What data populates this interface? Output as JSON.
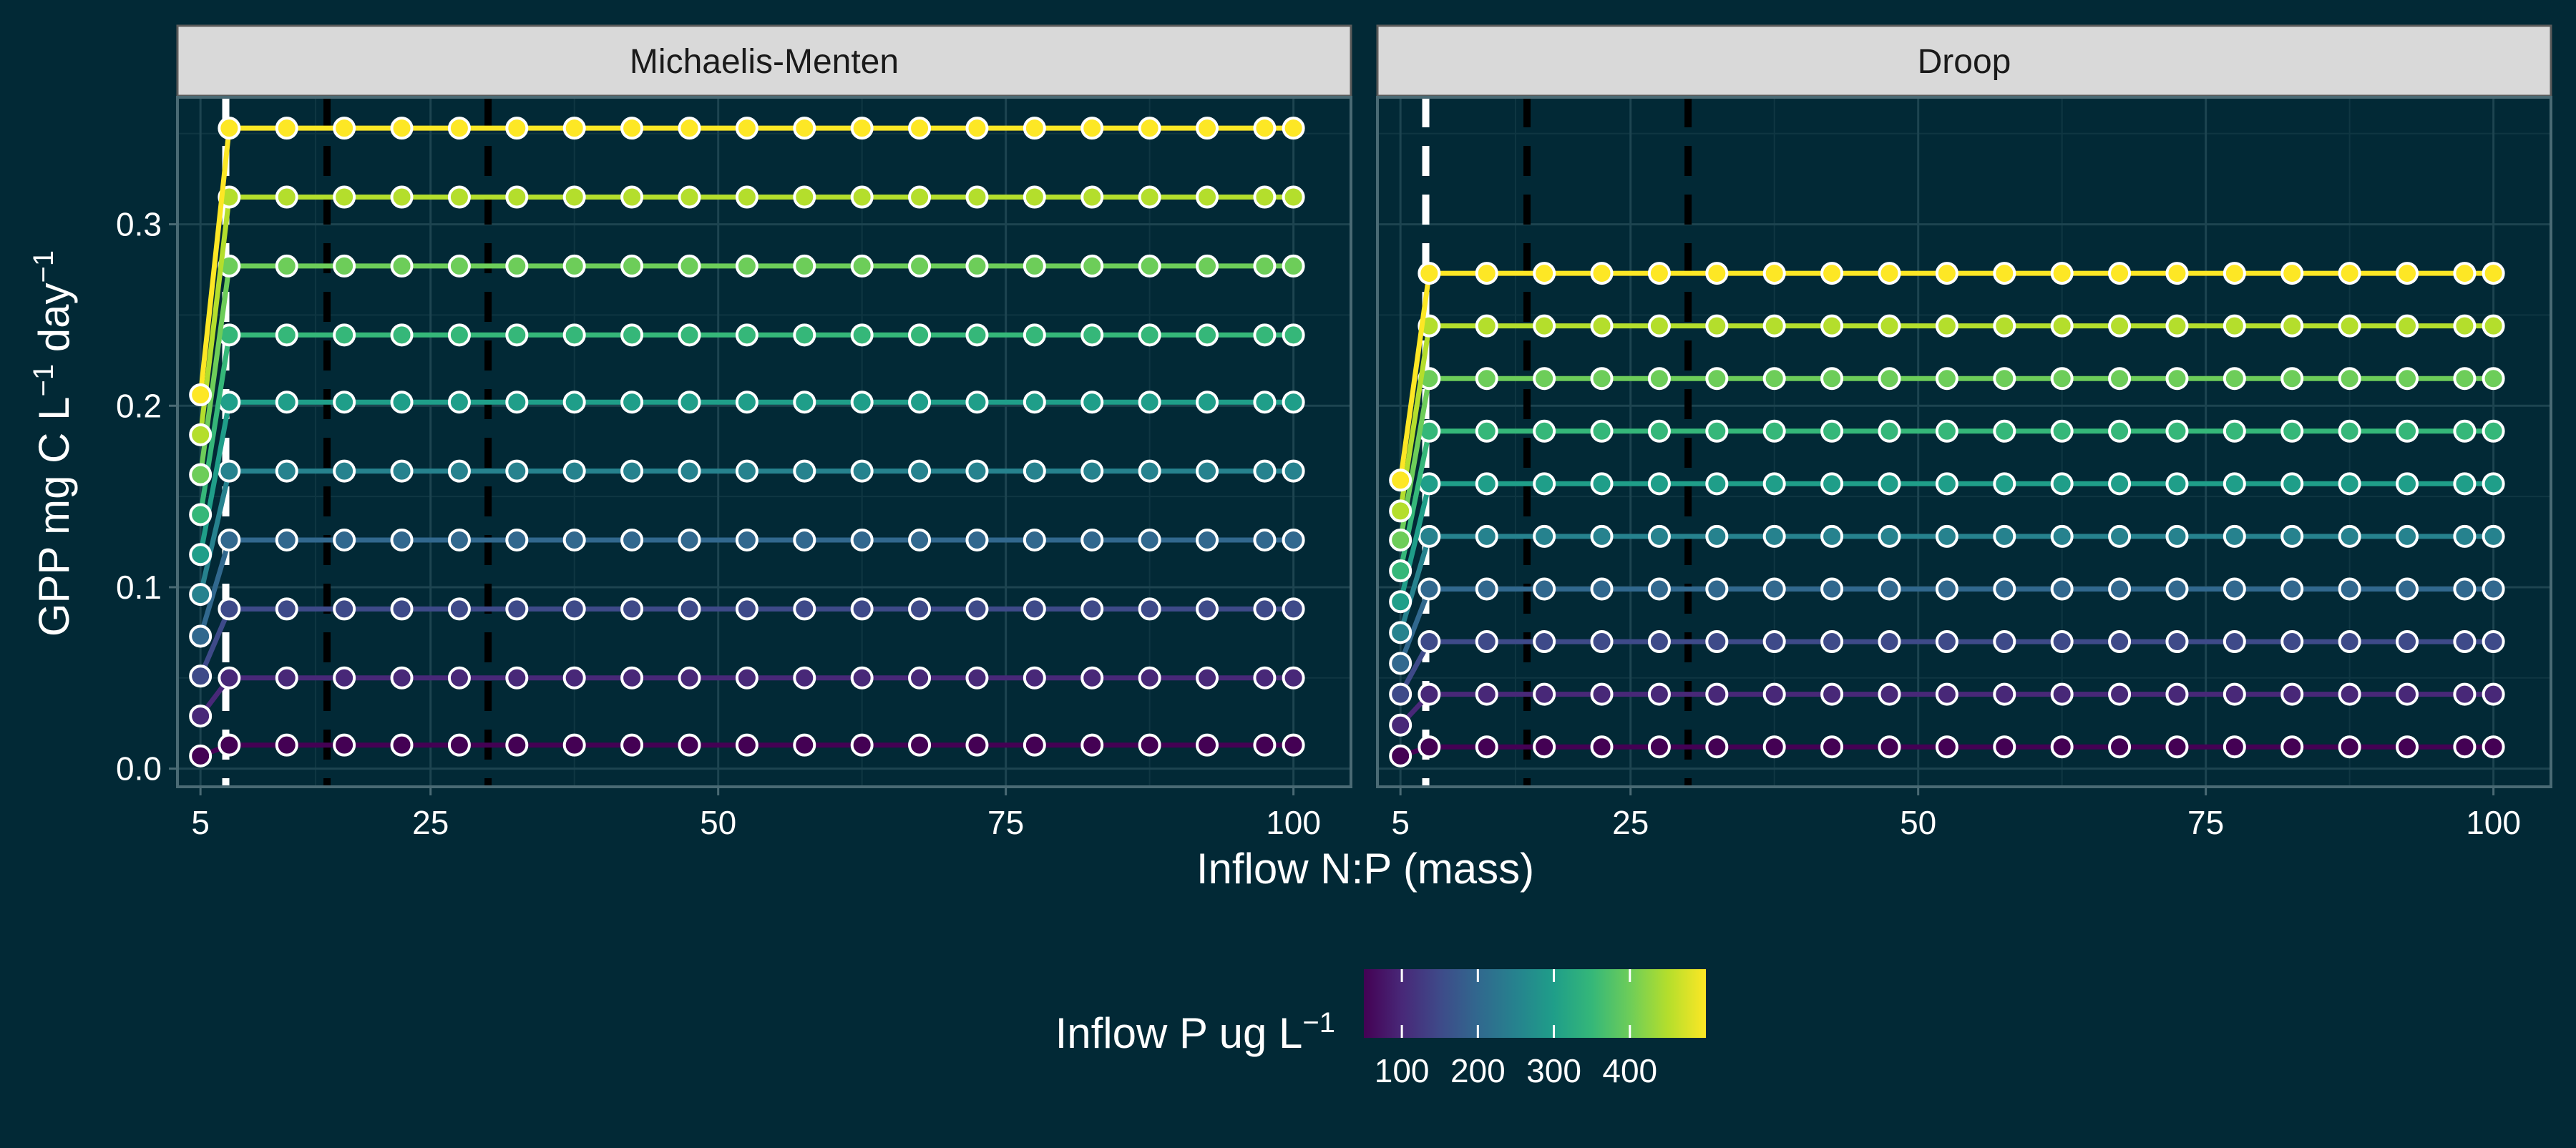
{
  "colors": {
    "background": "#022936",
    "panel_background": "#022936",
    "grid_major": "#1d4450",
    "grid_minor": "#0f3642",
    "panel_border": "#4a6a74",
    "strip_fill": "#d9d9d9",
    "strip_text": "#1a1a1a",
    "axis_text": "#ffffff",
    "point_stroke": "#ffffff",
    "guide_black": "#000000",
    "guide_white": "#ffffff",
    "viridis": [
      "#440154",
      "#482878",
      "#3e4a89",
      "#31688e",
      "#26828e",
      "#1f9e89",
      "#35b779",
      "#6dcd59",
      "#b4de2c",
      "#fde725"
    ]
  },
  "chart_data": {
    "type": "line",
    "x_axis_label": "Inflow N:P (mass)",
    "y_axis_label": {
      "base": "GPP mg C L",
      "mid": " day",
      "sup": "−1"
    },
    "x_ticks": [
      5,
      25,
      50,
      75,
      100
    ],
    "y_ticks": [
      0.0,
      0.1,
      0.2,
      0.3
    ],
    "y_tick_labels": [
      "0.0",
      "0.1",
      "0.2",
      "0.3"
    ],
    "xlim": [
      3,
      105
    ],
    "ylim": [
      -0.01,
      0.37
    ],
    "grid": true,
    "legend": {
      "title": "Inflow P ug L",
      "title_sup": "−1",
      "placement": "bottom",
      "range": [
        50,
        500
      ],
      "ticks": [
        100,
        200,
        300,
        400
      ],
      "tick_labels": [
        "100",
        "200",
        "300",
        "400"
      ]
    },
    "x_values": [
      5,
      7.5,
      12.5,
      17.5,
      22.5,
      27.5,
      32.5,
      37.5,
      42.5,
      47.5,
      52.5,
      57.5,
      62.5,
      67.5,
      72.5,
      77.5,
      82.5,
      87.5,
      92.5,
      97.5,
      100
    ],
    "inflow_p_values": [
      50,
      100,
      150,
      200,
      250,
      300,
      350,
      400,
      450,
      500
    ],
    "panels": [
      {
        "title": "Michaelis-Menten",
        "vlines": [
          {
            "x": 7.2,
            "color": "white"
          },
          {
            "x": 16,
            "color": "black"
          },
          {
            "x": 30,
            "color": "black"
          }
        ],
        "low_values": [
          0.007,
          0.029,
          0.051,
          0.073,
          0.096,
          0.118,
          0.14,
          0.162,
          0.184,
          0.206
        ],
        "plateau_values": [
          0.013,
          0.05,
          0.088,
          0.126,
          0.164,
          0.202,
          0.239,
          0.277,
          0.315,
          0.353
        ]
      },
      {
        "title": "Droop",
        "vlines": [
          {
            "x": 7.2,
            "color": "white"
          },
          {
            "x": 16,
            "color": "black"
          },
          {
            "x": 30,
            "color": "black"
          }
        ],
        "low_values": [
          0.007,
          0.024,
          0.041,
          0.058,
          0.075,
          0.092,
          0.109,
          0.126,
          0.142,
          0.159
        ],
        "plateau_values": [
          0.012,
          0.041,
          0.07,
          0.099,
          0.128,
          0.157,
          0.186,
          0.215,
          0.244,
          0.273
        ]
      }
    ]
  }
}
